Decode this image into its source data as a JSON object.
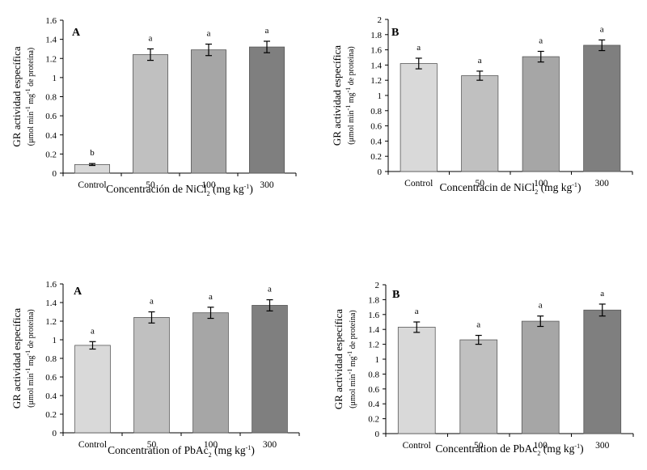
{
  "chart_data": [
    {
      "type": "bar",
      "panel_label": "A",
      "categories": [
        "Control",
        "50",
        "100",
        "300"
      ],
      "values": [
        0.09,
        1.24,
        1.29,
        1.32
      ],
      "errors": [
        0.01,
        0.06,
        0.06,
        0.06
      ],
      "letters": [
        "b",
        "a",
        "a",
        "a"
      ],
      "colors": [
        "#d9d9d9",
        "#c0c0c0",
        "#a6a6a6",
        "#7f7f7f"
      ],
      "ylim": [
        0,
        1.6
      ],
      "yticks": [
        "0",
        "0.2",
        "0.4",
        "0.6",
        "0.8",
        "1",
        "1.2",
        "1.4",
        "1.6"
      ],
      "ytick_values": [
        0,
        0.2,
        0.4,
        0.6,
        0.8,
        1,
        1.2,
        1.4,
        1.6
      ],
      "ylabel_line1": "GR actividad específica",
      "ylabel_line2": {
        "a": "(μmol min",
        "sup1": "-1",
        "b": " mg",
        "sup2": "-1",
        "c": " de proteína)"
      },
      "xlabel": {
        "a": "Concentración de NiCl",
        "sub": "2",
        "b": " (mg kg",
        "sup": "-1",
        "c": ")"
      }
    },
    {
      "type": "bar",
      "panel_label": "B",
      "categories": [
        "Control",
        "50",
        "100",
        "300"
      ],
      "values": [
        1.42,
        1.26,
        1.51,
        1.66
      ],
      "errors": [
        0.07,
        0.06,
        0.07,
        0.07
      ],
      "letters": [
        "a",
        "a",
        "a",
        "a"
      ],
      "colors": [
        "#d9d9d9",
        "#c0c0c0",
        "#a6a6a6",
        "#7f7f7f"
      ],
      "ylim": [
        0,
        2
      ],
      "yticks": [
        "0",
        "0.2",
        "0.4",
        "0.6",
        "0.8",
        "1",
        "1.2",
        "1.4",
        "1.6",
        "1.8",
        "2"
      ],
      "ytick_values": [
        0,
        0.2,
        0.4,
        0.6,
        0.8,
        1,
        1.2,
        1.4,
        1.6,
        1.8,
        2
      ],
      "ylabel_line1": "GR actividad específica",
      "ylabel_line2": {
        "a": "(μmol min",
        "sup1": "-1",
        "b": " mg",
        "sup2": "-1",
        "c": " de proteína)"
      },
      "xlabel": {
        "a": "Concentracin de NiCl",
        "sub": "2",
        "b": " (mg kg",
        "sup": "-1",
        "c": ")"
      }
    },
    {
      "type": "bar",
      "panel_label": "A",
      "categories": [
        "Control",
        "50",
        "100",
        "300"
      ],
      "values": [
        0.94,
        1.24,
        1.29,
        1.37
      ],
      "errors": [
        0.04,
        0.06,
        0.06,
        0.06
      ],
      "letters": [
        "a",
        "a",
        "a",
        "a"
      ],
      "colors": [
        "#d9d9d9",
        "#c0c0c0",
        "#a6a6a6",
        "#7f7f7f"
      ],
      "ylim": [
        0,
        1.6
      ],
      "yticks": [
        "0",
        "0.2",
        "0.4",
        "0.6",
        "0.8",
        "1",
        "1.2",
        "1.4",
        "1.6"
      ],
      "ytick_values": [
        0,
        0.2,
        0.4,
        0.6,
        0.8,
        1,
        1.2,
        1.4,
        1.6
      ],
      "ylabel_line1": "GR actividad específica",
      "ylabel_line2": {
        "a": "(μmol min",
        "sup1": "-1",
        "b": " mg",
        "sup2": "-1",
        "c": " de proteína)"
      },
      "xlabel": {
        "a": "Concentration of PbAc",
        "sub": "2",
        "b": " (mg kg",
        "sup": "-1",
        "c": ")"
      }
    },
    {
      "type": "bar",
      "panel_label": "B",
      "categories": [
        "Control",
        "50",
        "100",
        "300"
      ],
      "values": [
        1.43,
        1.26,
        1.51,
        1.66
      ],
      "errors": [
        0.07,
        0.06,
        0.07,
        0.08
      ],
      "letters": [
        "a",
        "a",
        "a",
        "a"
      ],
      "colors": [
        "#d9d9d9",
        "#c0c0c0",
        "#a6a6a6",
        "#7f7f7f"
      ],
      "ylim": [
        0,
        2
      ],
      "yticks": [
        "0",
        "0.2",
        "0.4",
        "0.6",
        "0.8",
        "1",
        "1.2",
        "1.4",
        "1.6",
        "1.8",
        "2"
      ],
      "ytick_values": [
        0,
        0.2,
        0.4,
        0.6,
        0.8,
        1,
        1.2,
        1.4,
        1.6,
        1.8,
        2
      ],
      "ylabel_line1": "GR actividad específica",
      "ylabel_line2": {
        "a": "(μmol min",
        "sup1": "-1",
        "b": " mg",
        "sup2": "-1",
        "c": " de proteína)"
      },
      "xlabel": {
        "a": "Concentration de PbAc",
        "sub": "2",
        "b": " (mg kg",
        "sup": "-1",
        "c": ")"
      }
    }
  ]
}
